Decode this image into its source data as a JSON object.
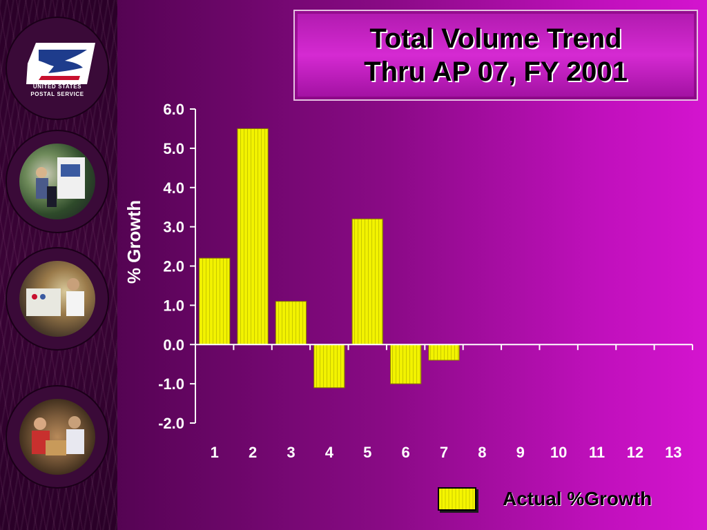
{
  "slide": {
    "title_line1": "Total Volume Trend",
    "title_line2": "Thru AP 07, FY 2001",
    "logo_text_line1": "UNITED STATES",
    "logo_text_line2": "POSTAL SERVICE",
    "icons": [
      "usps-eagle-logo",
      "mail-carrier-photo",
      "postal-worker-photo",
      "package-delivery-photo"
    ]
  },
  "colors": {
    "bar_fill": "#f2f200",
    "bar_stripe": "#c8c800",
    "bar_edge": "#8a7a00",
    "axis": "#ffffff",
    "tick_text": "#ffffff"
  },
  "chart_data": {
    "type": "bar",
    "title": "",
    "xlabel": "",
    "ylabel": "% Growth",
    "ylim": [
      -2.0,
      6.0
    ],
    "yticks": [
      "6.0",
      "5.0",
      "4.0",
      "3.0",
      "2.0",
      "1.0",
      "0.0",
      "-1.0",
      "-2.0"
    ],
    "categories": [
      "1",
      "2",
      "3",
      "4",
      "5",
      "6",
      "7",
      "8",
      "9",
      "10",
      "11",
      "12",
      "13"
    ],
    "series": [
      {
        "name": "Actual %Growth",
        "values": [
          2.2,
          5.5,
          1.1,
          -1.1,
          3.2,
          -1.0,
          -0.4,
          null,
          null,
          null,
          null,
          null,
          null
        ]
      }
    ],
    "legend": "bottom-right",
    "grid": false
  }
}
